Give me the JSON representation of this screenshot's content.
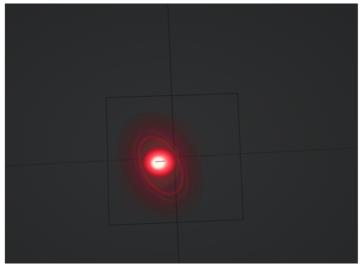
{
  "image": {
    "subject": "laser-beam-profile",
    "colors": {
      "border": "#ffffff",
      "background": "#2c2d2e",
      "background_dark": "#262728",
      "crosshair": "#1d1e1f",
      "roi_box": "#1e1f20",
      "beam_core": "#fff4e8",
      "beam_mid": "#ff3c4a",
      "beam_outer": "#b0121e",
      "fringe": "#8a1420"
    }
  }
}
